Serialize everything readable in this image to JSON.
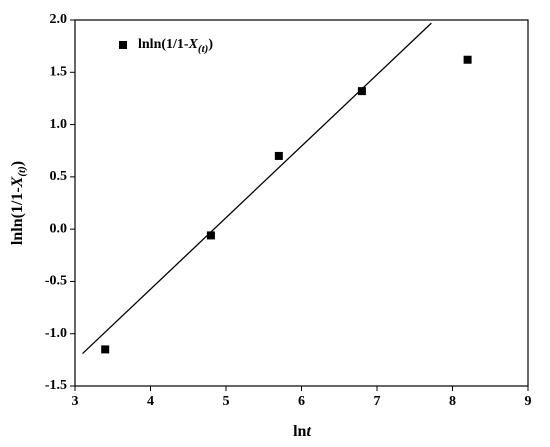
{
  "chart_data": {
    "type": "scatter",
    "xlabel_parts": [
      "ln",
      "t"
    ],
    "ylabel_parts": [
      "lnln(1/1-",
      "X",
      "(t)",
      ")"
    ],
    "series": [
      {
        "name_parts": [
          "lnln(1/1-",
          "X",
          "(t)",
          ")"
        ],
        "color": "#000000",
        "x": [
          3.4,
          4.8,
          5.7,
          6.8,
          8.2
        ],
        "values": [
          -1.15,
          -0.06,
          0.7,
          1.32,
          1.62
        ]
      }
    ],
    "fit_line": {
      "color": "#000000",
      "x": [
        3.1,
        7.72
      ],
      "values": [
        -1.19,
        1.97
      ]
    },
    "xlim": [
      3,
      9
    ],
    "xticks": [
      3,
      4,
      5,
      6,
      7,
      8,
      9
    ],
    "ylim": [
      -1.5,
      2.0
    ],
    "yticks": [
      -1.5,
      {
        "value": -1,
        "label": "-1.0"
      },
      -0.5,
      {
        "value": 0,
        "label": "0.0"
      },
      0.5,
      {
        "value": 1,
        "label": "1.0"
      },
      1.5,
      {
        "value": 2,
        "label": "2.0"
      }
    ],
    "legend": "upper left",
    "grid": false
  }
}
